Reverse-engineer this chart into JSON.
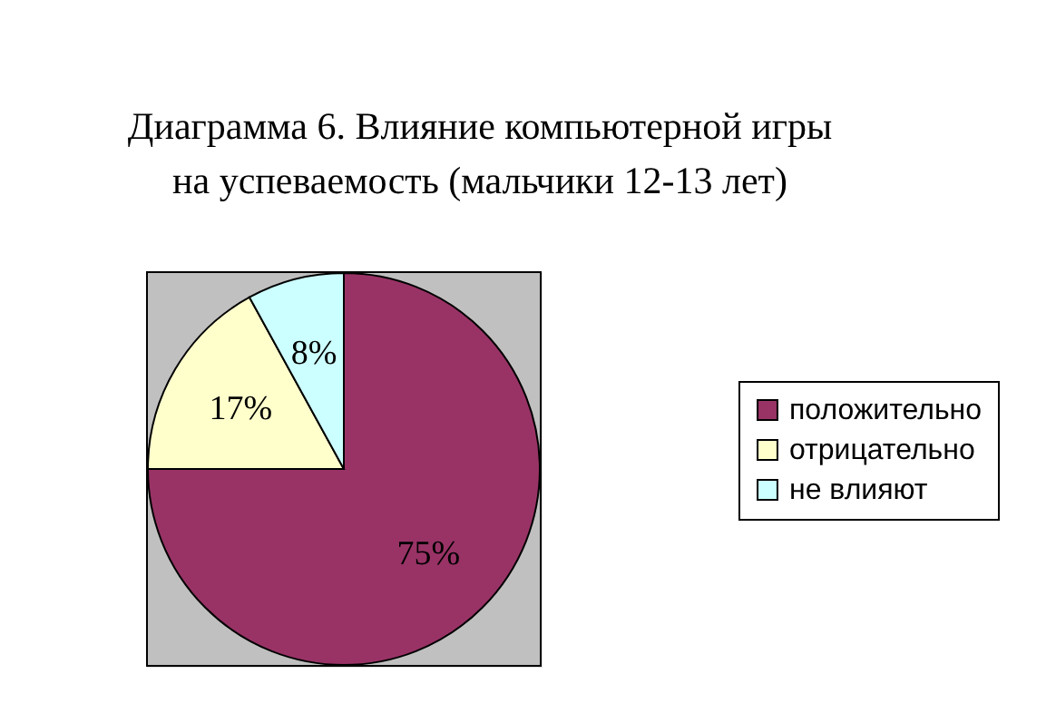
{
  "chart_data": {
    "type": "pie",
    "title": [
      "Диаграмма 6. Влияние компьютерной игры",
      "на успеваемость (мальчики 12-13 лет)"
    ],
    "categories": [
      "положительно",
      "отрицательно",
      "не влияют"
    ],
    "values": [
      75,
      17,
      8
    ],
    "value_labels": [
      "75%",
      "17%",
      "8%"
    ],
    "colors": [
      "#993366",
      "#ffffcc",
      "#ccffff"
    ],
    "legend": "right"
  }
}
